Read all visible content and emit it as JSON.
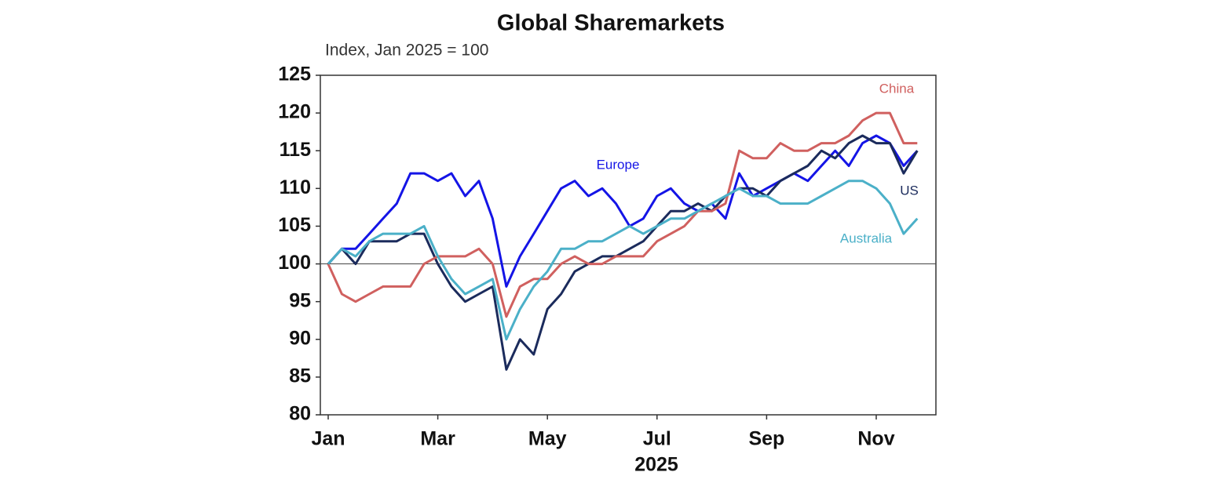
{
  "chart_data": {
    "type": "line",
    "title": "Global Sharemarkets",
    "subtitle": "Index, Jan 2025 = 100",
    "x_label": "2025",
    "categories": [
      "Jan",
      null,
      null,
      null,
      null,
      null,
      null,
      null,
      "Mar",
      null,
      null,
      null,
      null,
      null,
      null,
      null,
      "May",
      null,
      null,
      null,
      null,
      null,
      null,
      null,
      "Jul",
      null,
      null,
      null,
      null,
      null,
      null,
      null,
      "Sep",
      null,
      null,
      null,
      null,
      null,
      null,
      null,
      "Nov",
      null,
      null,
      null
    ],
    "series": [
      {
        "name": "Europe",
        "color": "#1414e6",
        "values": [
          100,
          102,
          102,
          104,
          106,
          108,
          112,
          112,
          111,
          112,
          109,
          111,
          106,
          97,
          101,
          104,
          107,
          110,
          111,
          109,
          110,
          108,
          105,
          106,
          109,
          110,
          108,
          107,
          108,
          106,
          112,
          109,
          110,
          111,
          112,
          111,
          113,
          115,
          113,
          116,
          117,
          116,
          113,
          115
        ]
      },
      {
        "name": "US",
        "color": "#1b2b5c",
        "values": [
          100,
          102,
          100,
          103,
          103,
          103,
          104,
          104,
          100,
          97,
          95,
          96,
          97,
          86,
          90,
          88,
          94,
          96,
          99,
          100,
          101,
          101,
          102,
          103,
          105,
          107,
          107,
          108,
          107,
          109,
          110,
          110,
          109,
          111,
          112,
          113,
          115,
          114,
          116,
          117,
          116,
          116,
          112,
          115
        ]
      },
      {
        "name": "China",
        "color": "#d0605f",
        "values": [
          100,
          96,
          95,
          96,
          97,
          97,
          97,
          100,
          101,
          101,
          101,
          102,
          100,
          93,
          97,
          98,
          98,
          100,
          101,
          100,
          100,
          101,
          101,
          101,
          103,
          104,
          105,
          107,
          107,
          108,
          115,
          114,
          114,
          116,
          115,
          115,
          116,
          116,
          117,
          119,
          120,
          120,
          116,
          116
        ]
      },
      {
        "name": "Australia",
        "color": "#4bb0c8",
        "values": [
          100,
          102,
          101,
          103,
          104,
          104,
          104,
          105,
          101,
          98,
          96,
          97,
          98,
          90,
          94,
          97,
          99,
          102,
          102,
          103,
          103,
          104,
          105,
          104,
          105,
          106,
          106,
          107,
          108,
          109,
          110,
          109,
          109,
          108,
          108,
          108,
          109,
          110,
          111,
          111,
          110,
          108,
          104,
          106
        ]
      }
    ],
    "ylim": [
      80,
      125
    ],
    "yticks": [
      80,
      85,
      90,
      95,
      100,
      105,
      110,
      115,
      120,
      125
    ],
    "hline": 100
  }
}
